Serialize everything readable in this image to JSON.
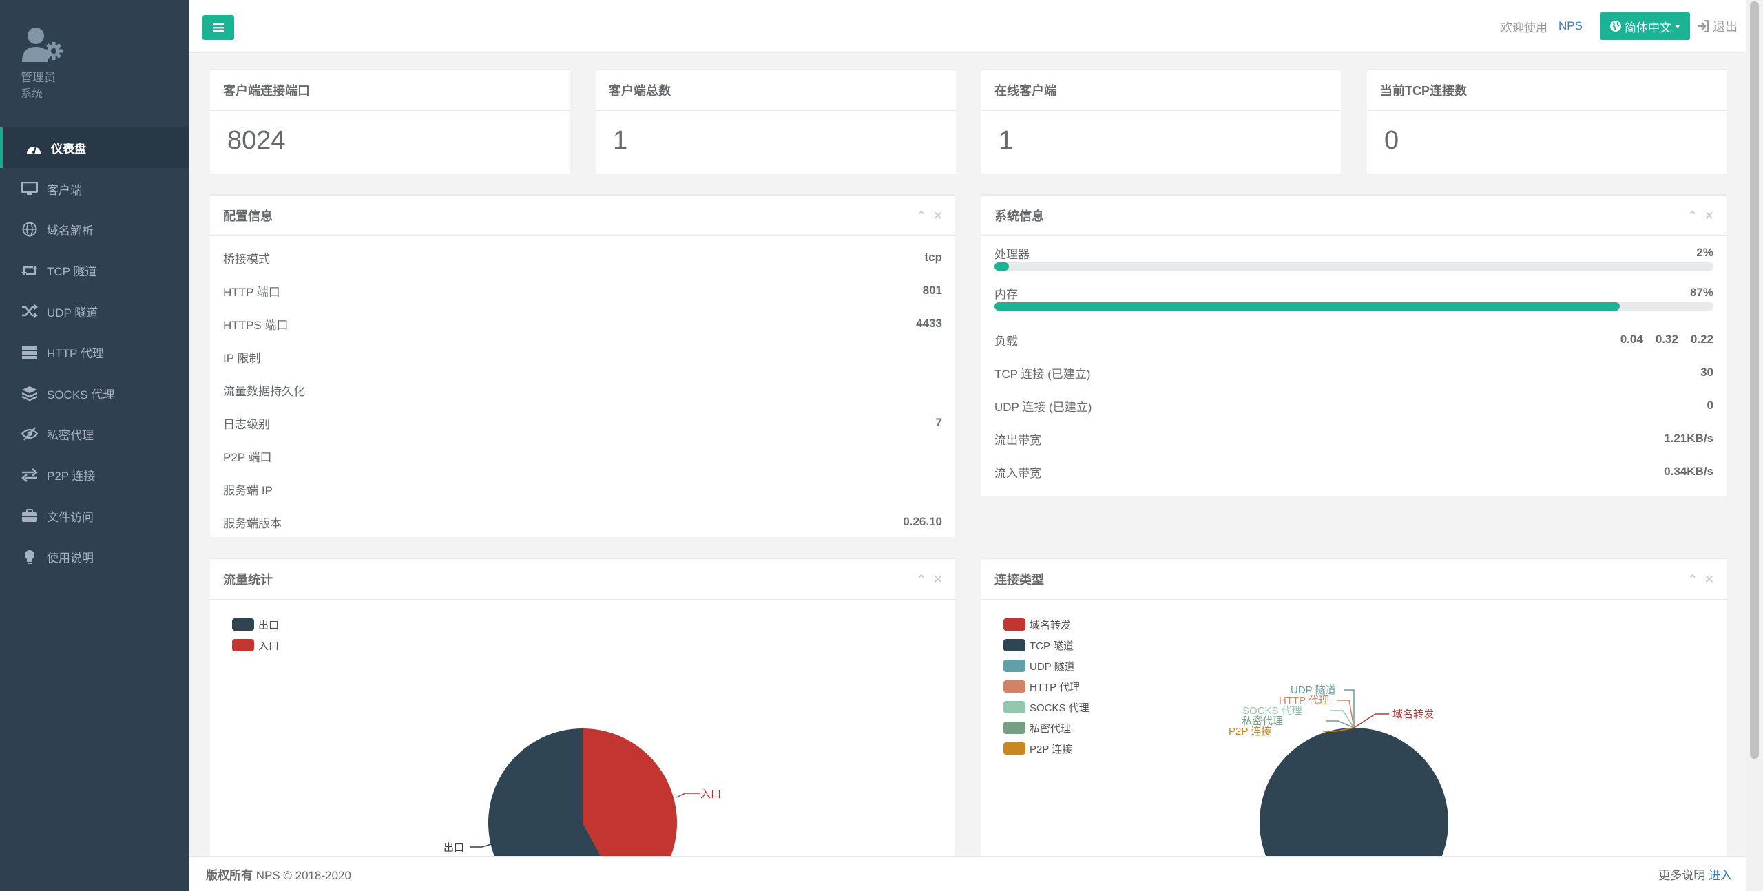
{
  "profile": {
    "name": "管理员",
    "role": "系统"
  },
  "nav": [
    {
      "label": "仪表盘",
      "icon": "dashboard-icon",
      "active": true
    },
    {
      "label": "客户端",
      "icon": "desktop-icon"
    },
    {
      "label": "域名解析",
      "icon": "globe-icon"
    },
    {
      "label": "TCP 隧道",
      "icon": "retweet-icon"
    },
    {
      "label": "UDP 隧道",
      "icon": "random-icon"
    },
    {
      "label": "HTTP 代理",
      "icon": "server-icon"
    },
    {
      "label": "SOCKS 代理",
      "icon": "layers-icon"
    },
    {
      "label": "私密代理",
      "icon": "eye-slash-icon"
    },
    {
      "label": "P2P 连接",
      "icon": "exchange-icon"
    },
    {
      "label": "文件访问",
      "icon": "briefcase-icon"
    },
    {
      "label": "使用说明",
      "icon": "lightbulb-icon"
    }
  ],
  "topbar": {
    "welcome": "欢迎使用",
    "brand": "NPS",
    "language": "简体中文",
    "logout": "退出"
  },
  "stats": [
    {
      "title": "客户端连接端口",
      "value": "8024"
    },
    {
      "title": "客户端总数",
      "value": "1"
    },
    {
      "title": "在线客户端",
      "value": "1"
    },
    {
      "title": "当前TCP连接数",
      "value": "0"
    }
  ],
  "config": {
    "title": "配置信息",
    "rows": [
      {
        "k": "桥接模式",
        "v": "tcp"
      },
      {
        "k": "HTTP 端口",
        "v": "801"
      },
      {
        "k": "HTTPS 端口",
        "v": "4433"
      },
      {
        "k": "IP 限制",
        "v": ""
      },
      {
        "k": "流量数据持久化",
        "v": ""
      },
      {
        "k": "日志级别",
        "v": "7"
      },
      {
        "k": "P2P 端口",
        "v": ""
      },
      {
        "k": "服务端 IP",
        "v": ""
      },
      {
        "k": "服务端版本",
        "v": "0.26.10"
      }
    ]
  },
  "system": {
    "title": "系统信息",
    "cpu": {
      "label": "处理器",
      "value": "2%",
      "fraction": 0.02
    },
    "mem": {
      "label": "内存",
      "value": "87%",
      "fraction": 0.87
    },
    "load": {
      "label": "负载",
      "values": [
        "0.04",
        "0.32",
        "0.22"
      ]
    },
    "rows": [
      {
        "k": "TCP 连接 (已建立)",
        "v": "30"
      },
      {
        "k": "UDP 连接 (已建立)",
        "v": "0"
      },
      {
        "k": "流出带宽",
        "v": "1.21KB/s"
      },
      {
        "k": "流入带宽",
        "v": "0.34KB/s"
      }
    ]
  },
  "traffic": {
    "title": "流量统计",
    "legend": [
      {
        "name": "出口",
        "color": "#2f4554"
      },
      {
        "name": "入口",
        "color": "#c23531"
      }
    ],
    "slices": [
      {
        "name": "出口",
        "value": 58,
        "color": "#2f4554"
      },
      {
        "name": "入口",
        "value": 42,
        "color": "#c23531"
      }
    ]
  },
  "conntype": {
    "title": "连接类型",
    "legend": [
      {
        "name": "域名转发",
        "color": "#c23531"
      },
      {
        "name": "TCP 隧道",
        "color": "#2f4554"
      },
      {
        "name": "UDP 隧道",
        "color": "#61a0a8"
      },
      {
        "name": "HTTP 代理",
        "color": "#d48265"
      },
      {
        "name": "SOCKS 代理",
        "color": "#91c7ae"
      },
      {
        "name": "私密代理",
        "color": "#749f83"
      },
      {
        "name": "P2P 连接",
        "color": "#ca8622"
      }
    ]
  },
  "footer": {
    "copyright": "版权所有",
    "brand": "NPS © 2018-2020",
    "more": "更多说明",
    "enter": "进入"
  }
}
